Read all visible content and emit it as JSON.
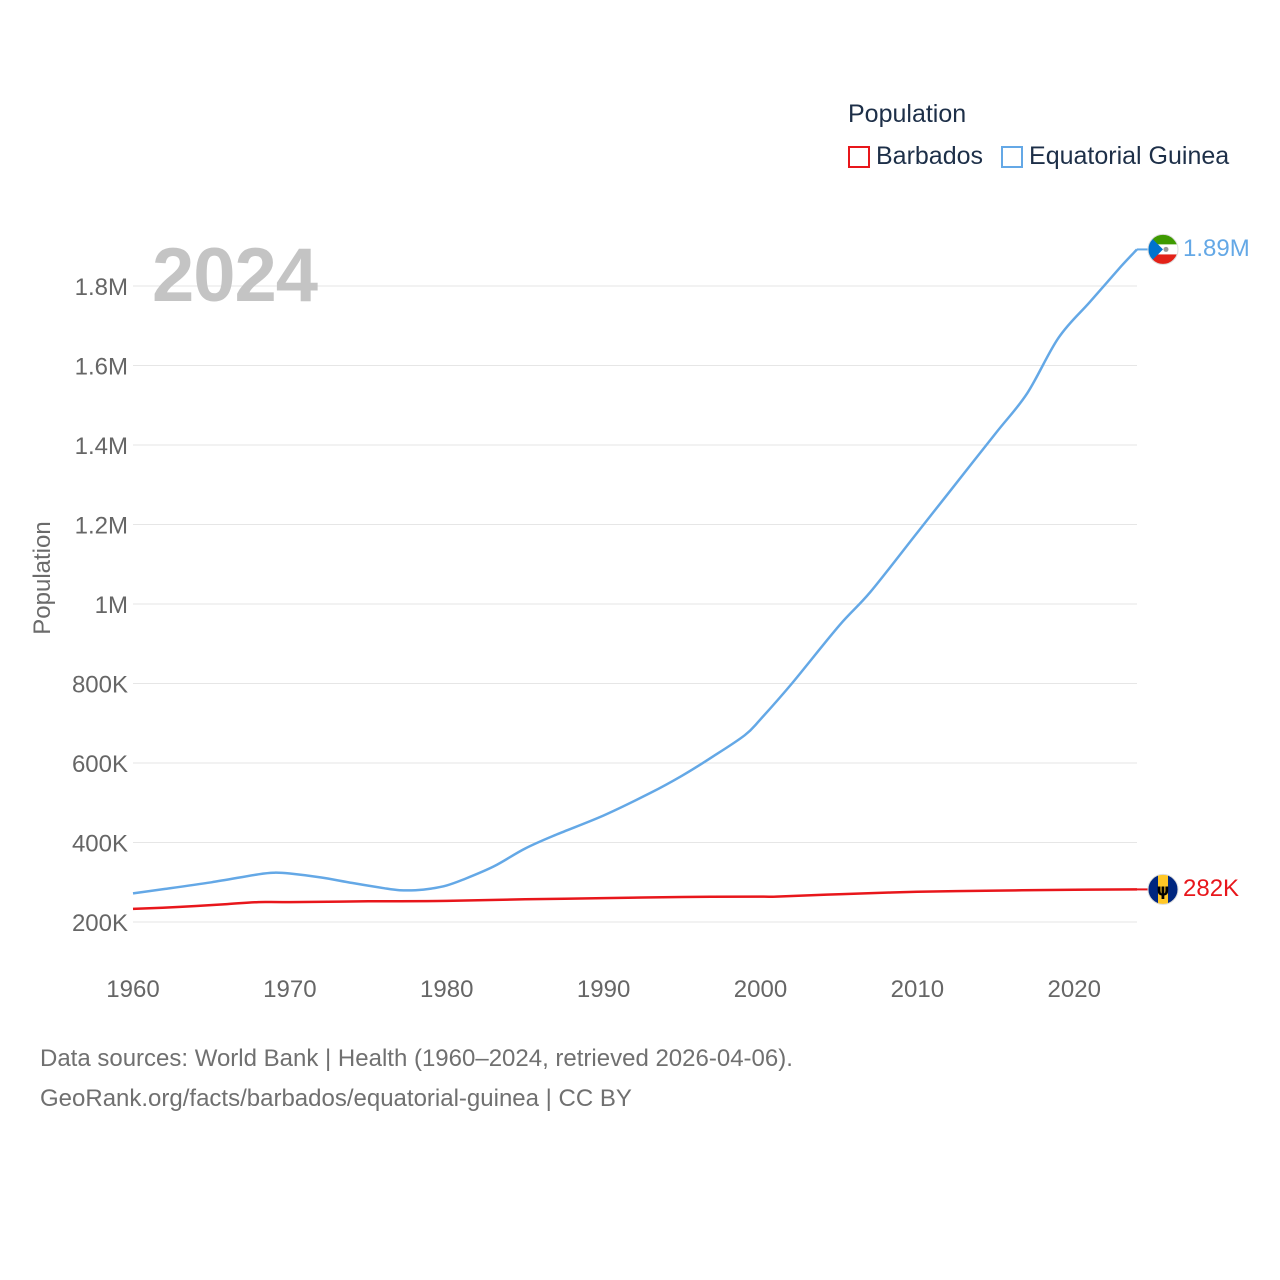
{
  "chart_data": {
    "type": "line",
    "legend_title": "Population",
    "year_display": "2024",
    "ylabel": "Population",
    "xlabel": "",
    "xlim": [
      1960,
      2024
    ],
    "ylim": [
      100000,
      1950000
    ],
    "x_ticks": [
      1960,
      1970,
      1980,
      1990,
      2000,
      2010,
      2020
    ],
    "x_tick_labels": [
      "1960",
      "1970",
      "1980",
      "1990",
      "2000",
      "2010",
      "2020"
    ],
    "y_ticks": [
      200000,
      400000,
      600000,
      800000,
      1000000,
      1200000,
      1400000,
      1600000,
      1800000
    ],
    "y_tick_labels": [
      "200K",
      "400K",
      "600K",
      "800K",
      "1M",
      "1.2M",
      "1.4M",
      "1.6M",
      "1.8M"
    ],
    "grid": true,
    "legend_position": "top-right",
    "series": [
      {
        "name": "Barbados",
        "color": "#e8161b",
        "end_label": "282K",
        "flag_icon": "barbados-flag-icon",
        "points": [
          [
            1960,
            233000
          ],
          [
            1963,
            238000
          ],
          [
            1966,
            245000
          ],
          [
            1968,
            250000
          ],
          [
            1970,
            250000
          ],
          [
            1975,
            252000
          ],
          [
            1980,
            253000
          ],
          [
            1985,
            257000
          ],
          [
            1990,
            260000
          ],
          [
            1995,
            263000
          ],
          [
            2000,
            264000
          ],
          [
            2001,
            264000
          ],
          [
            2005,
            270000
          ],
          [
            2010,
            276000
          ],
          [
            2015,
            279000
          ],
          [
            2020,
            281000
          ],
          [
            2024,
            282000
          ]
        ]
      },
      {
        "name": "Equatorial Guinea",
        "color": "#64a8e6",
        "end_label": "1.89M",
        "flag_icon": "equatorial-guinea-flag-icon",
        "points": [
          [
            1960,
            272000
          ],
          [
            1962,
            283000
          ],
          [
            1965,
            300000
          ],
          [
            1968,
            320000
          ],
          [
            1969,
            324000
          ],
          [
            1970,
            322000
          ],
          [
            1972,
            312000
          ],
          [
            1974,
            298000
          ],
          [
            1976,
            285000
          ],
          [
            1977,
            280000
          ],
          [
            1978,
            280000
          ],
          [
            1979,
            284000
          ],
          [
            1980,
            292000
          ],
          [
            1981,
            306000
          ],
          [
            1983,
            340000
          ],
          [
            1985,
            385000
          ],
          [
            1987,
            420000
          ],
          [
            1990,
            468000
          ],
          [
            1993,
            525000
          ],
          [
            1995,
            568000
          ],
          [
            1997,
            617000
          ],
          [
            1999,
            670000
          ],
          [
            2000,
            710000
          ],
          [
            2002,
            800000
          ],
          [
            2005,
            945000
          ],
          [
            2007,
            1030000
          ],
          [
            2010,
            1180000
          ],
          [
            2012,
            1280000
          ],
          [
            2015,
            1430000
          ],
          [
            2017,
            1530000
          ],
          [
            2019,
            1670000
          ],
          [
            2021,
            1760000
          ],
          [
            2023,
            1850000
          ],
          [
            2024,
            1892000
          ]
        ]
      }
    ]
  },
  "footer": {
    "source_line": "Data sources: World Bank | Health (1960–2024, retrieved 2026-04-06).",
    "url_line": "GeoRank.org/facts/barbados/equatorial-guinea | CC BY"
  }
}
